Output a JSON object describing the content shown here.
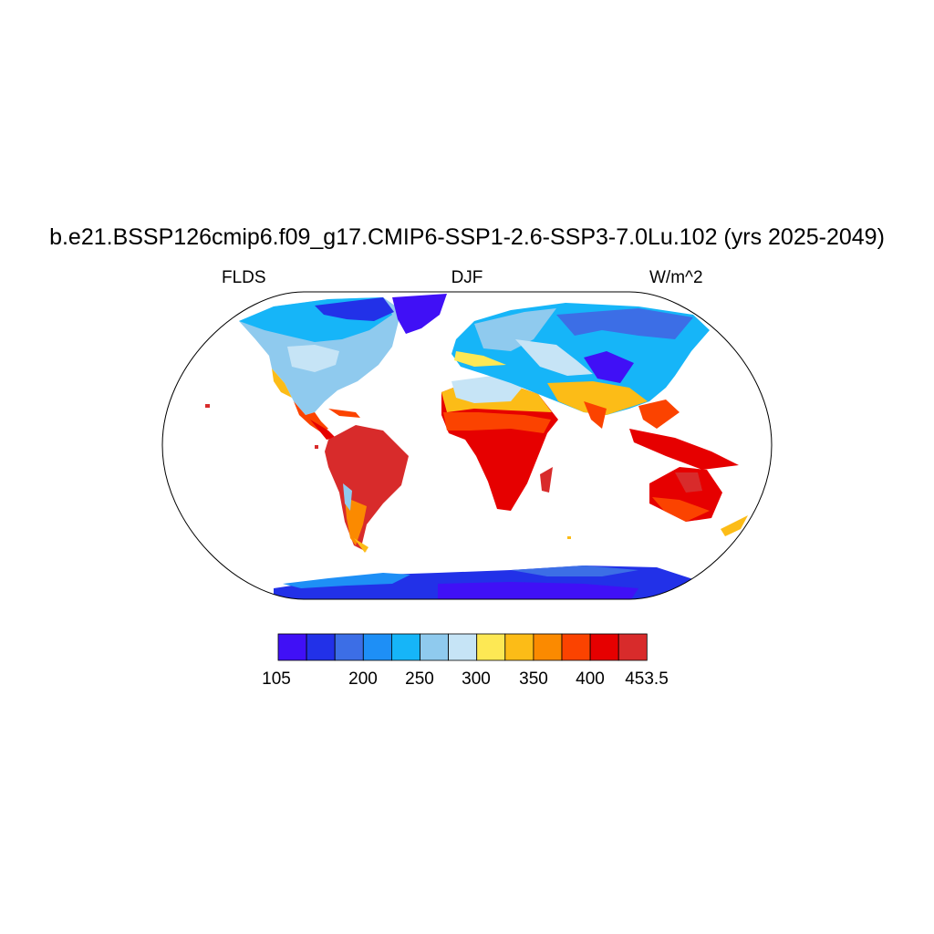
{
  "title": "b.e21.BSSP126cmip6.f09_g17.CMIP6-SSP1-2.6-SSP3-7.0Lu.102 (yrs 2025-2049)",
  "variable": "FLDS",
  "season": "DJF",
  "units": "W/m^2",
  "colorbar": {
    "colors": [
      "#4010f6",
      "#2231e8",
      "#3c6ee6",
      "#1e8ff6",
      "#16b5f8",
      "#8fcaee",
      "#c6e4f6",
      "#fde854",
      "#fcbc17",
      "#fb8a00",
      "#fb4300",
      "#e60000",
      "#d82b2b"
    ],
    "labels": [
      "105",
      "200",
      "250",
      "300",
      "350",
      "400",
      "453.5"
    ]
  },
  "regions": [
    {
      "name": "north-america",
      "color": "#8fcaee"
    },
    {
      "name": "south-america",
      "color": "#d82b2b"
    },
    {
      "name": "africa",
      "color": "#e60000"
    },
    {
      "name": "eurasia",
      "color": "#16b5f8"
    },
    {
      "name": "australia",
      "color": "#e60000"
    },
    {
      "name": "antarctica",
      "color": "#2231e8"
    },
    {
      "name": "greenland",
      "color": "#4010f6"
    }
  ]
}
